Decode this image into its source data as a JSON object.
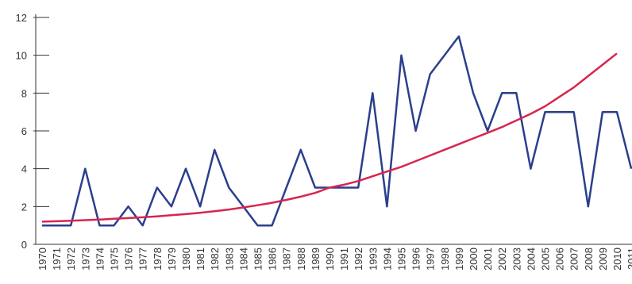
{
  "chart_data": {
    "type": "line",
    "categories": [
      "1970",
      "1971",
      "1972",
      "1973",
      "1974",
      "1975",
      "1976",
      "1977",
      "1978",
      "1979",
      "1980",
      "1981",
      "1982",
      "1983",
      "1984",
      "1985",
      "1986",
      "1987",
      "1988",
      "1989",
      "1990",
      "1991",
      "1992",
      "1993",
      "1994",
      "1995",
      "1996",
      "1997",
      "1998",
      "1999",
      "2000",
      "2001",
      "2002",
      "2003",
      "2004",
      "2005",
      "2006",
      "2007",
      "2008",
      "2009",
      "2010",
      "2011"
    ],
    "series": [
      {
        "color": "#2b3f8c",
        "values": [
          1,
          1,
          1,
          4,
          1,
          1,
          2,
          1,
          3,
          2,
          4,
          2,
          5,
          3,
          2,
          1,
          1,
          3,
          5,
          3,
          3,
          3,
          3,
          8,
          2,
          10,
          6,
          9,
          10,
          11,
          8,
          6,
          8,
          8,
          4,
          7,
          7,
          7,
          2,
          7,
          7,
          4
        ]
      },
      {
        "color": "#d8254e",
        "values": [
          1.2,
          1.22,
          1.25,
          1.28,
          1.31,
          1.35,
          1.39,
          1.43,
          1.48,
          1.54,
          1.6,
          1.67,
          1.75,
          1.84,
          1.95,
          2.07,
          2.2,
          2.35,
          2.52,
          2.72,
          3.0,
          3.15,
          3.35,
          3.6,
          3.85,
          4.1,
          4.4,
          4.7,
          5.0,
          5.3,
          5.6,
          5.9,
          6.2,
          6.55,
          6.9,
          7.3,
          7.8,
          8.3,
          8.9,
          9.5,
          10.1,
          null
        ]
      }
    ],
    "ylim": [
      0,
      12
    ],
    "yticks": [
      0,
      2,
      4,
      6,
      8,
      10,
      12
    ]
  }
}
